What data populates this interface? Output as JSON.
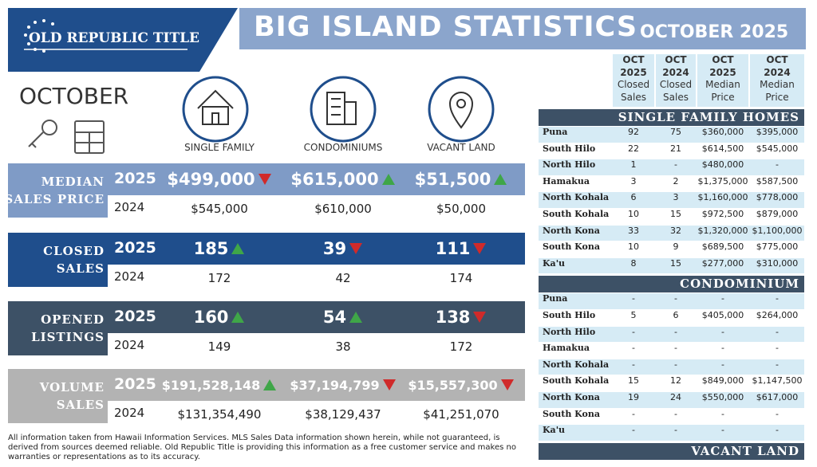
{
  "header": {
    "logo": "OLD REPUBLIC TITLE",
    "title": "BIG ISLAND STATISTICS",
    "subtitle": "OCTOBER 2025"
  },
  "month": "OCTOBER",
  "property_types": [
    "SINGLE FAMILY",
    "CONDOMINIUMS",
    "VACANT LAND"
  ],
  "stats": [
    {
      "label": [
        "MEDIAN",
        "SALES PRICE"
      ],
      "color": "#7f9bc6",
      "year_current": "2025",
      "current": [
        "$499,000",
        "$615,000",
        "$51,500"
      ],
      "trend": [
        "down",
        "up",
        "up"
      ],
      "year_prior": "2024",
      "prior": [
        "$545,000",
        "$610,000",
        "$50,000"
      ]
    },
    {
      "label": [
        "CLOSED",
        "SALES"
      ],
      "color": "#1f4e8c",
      "year_current": "2025",
      "current": [
        "185",
        "39",
        "111"
      ],
      "trend": [
        "up",
        "down",
        "down"
      ],
      "year_prior": "2024",
      "prior": [
        "172",
        "42",
        "174"
      ]
    },
    {
      "label": [
        "OPENED",
        "LISTINGS"
      ],
      "color": "#3d5166",
      "year_current": "2025",
      "current": [
        "160",
        "54",
        "138"
      ],
      "trend": [
        "up",
        "up",
        "down"
      ],
      "year_prior": "2024",
      "prior": [
        "149",
        "38",
        "172"
      ]
    },
    {
      "label": [
        "VOLUME",
        "SALES"
      ],
      "color": "#b3b3b3",
      "year_current": "2025",
      "current": [
        "$191,528,148",
        "$37,194,799",
        "$15,557,300"
      ],
      "trend": [
        "up",
        "down",
        "down"
      ],
      "year_prior": "2024",
      "prior": [
        "$131,354,490",
        "$38,129,437",
        "$41,251,070"
      ]
    }
  ],
  "table": {
    "columns": [
      [
        "OCT",
        "2025",
        "Closed",
        "Sales"
      ],
      [
        "OCT",
        "2024",
        "Closed",
        "Sales"
      ],
      [
        "OCT",
        "2025",
        "Median",
        "Price"
      ],
      [
        "OCT",
        "2024",
        "Median",
        "Price"
      ]
    ],
    "sections": [
      {
        "title": "SINGLE FAMILY HOMES",
        "rows": [
          [
            "Puna",
            "92",
            "75",
            "$360,000",
            "$395,000"
          ],
          [
            "South Hilo",
            "22",
            "21",
            "$614,500",
            "$545,000"
          ],
          [
            "North Hilo",
            "1",
            "-",
            "$480,000",
            "-"
          ],
          [
            "Hamakua",
            "3",
            "2",
            "$1,375,000",
            "$587,500"
          ],
          [
            "North Kohala",
            "6",
            "3",
            "$1,160,000",
            "$778,000"
          ],
          [
            "South Kohala",
            "10",
            "15",
            "$972,500",
            "$879,000"
          ],
          [
            "North Kona",
            "33",
            "32",
            "$1,320,000",
            "$1,100,000"
          ],
          [
            "South Kona",
            "10",
            "9",
            "$689,500",
            "$775,000"
          ],
          [
            "Ka'u",
            "8",
            "15",
            "$277,000",
            "$310,000"
          ]
        ]
      },
      {
        "title": "CONDOMINIUM",
        "rows": [
          [
            "Puna",
            "-",
            "-",
            "-",
            "-"
          ],
          [
            "South Hilo",
            "5",
            "6",
            "$405,000",
            "$264,000"
          ],
          [
            "North Hilo",
            "-",
            "-",
            "-",
            "-"
          ],
          [
            "Hamakua",
            "-",
            "-",
            "-",
            "-"
          ],
          [
            "North Kohala",
            "-",
            "-",
            "-",
            "-"
          ],
          [
            "South Kohala",
            "15",
            "12",
            "$849,000",
            "$1,147,500"
          ],
          [
            "North Kona",
            "19",
            "24",
            "$550,000",
            "$617,000"
          ],
          [
            "South Kona",
            "-",
            "-",
            "-",
            "-"
          ],
          [
            "Ka'u",
            "-",
            "-",
            "-",
            "-"
          ]
        ]
      },
      {
        "title": "VACANT LAND"
      }
    ]
  },
  "footnote": "All information taken from Hawaii Information Services.  MLS Sales Data information shown herein, while not guaranteed, is derived from sources deemed reliable.  Old Republic Title is providing this information as a free customer service and makes no warranties or representations as to its accuracy."
}
